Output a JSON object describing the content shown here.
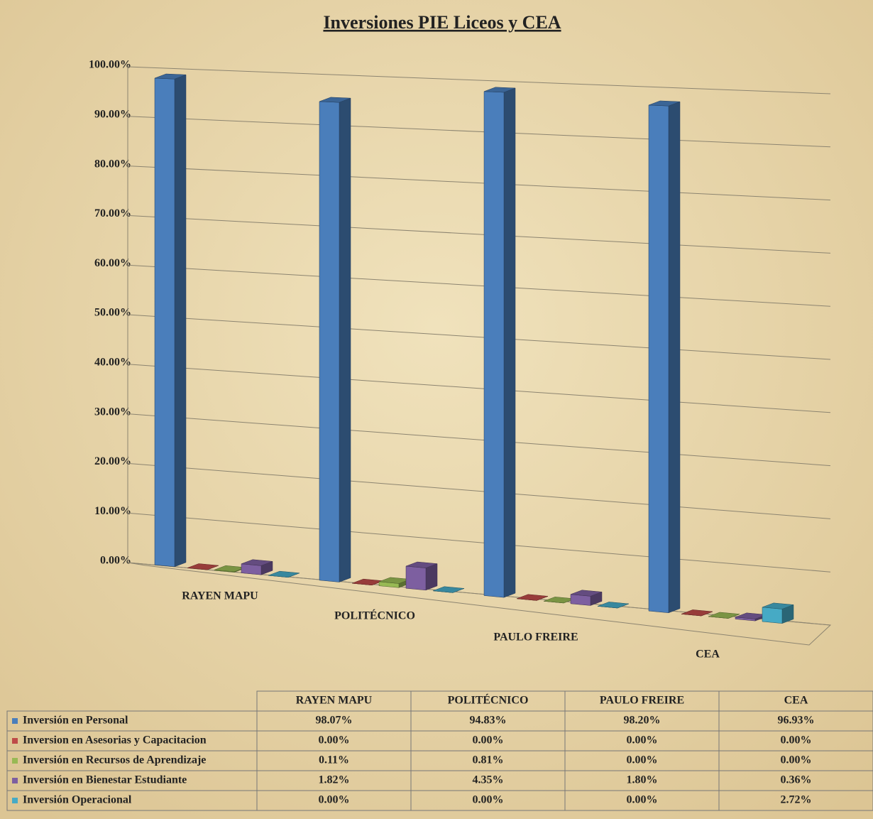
{
  "chart_data": {
    "type": "bar",
    "title": "Inversiones PIE Liceos y CEA",
    "categories": [
      "RAYEN MAPU",
      "POLITÉCNICO",
      "PAULO FREIRE",
      "CEA"
    ],
    "series": [
      {
        "name": "Inversión en Personal",
        "color": "#4a7ebb",
        "values": [
          98.07,
          94.83,
          98.2,
          96.93
        ],
        "value_labels": [
          "98.07%",
          "94.83%",
          "98.20%",
          "96.93%"
        ]
      },
      {
        "name": "Inversion en Asesorias y Capacitacion",
        "color": "#be4b48",
        "values": [
          0.0,
          0.0,
          0.0,
          0.0
        ],
        "value_labels": [
          "0.00%",
          "0.00%",
          "0.00%",
          "0.00%"
        ]
      },
      {
        "name": "Inversión en Recursos de Aprendizaje",
        "color": "#98b954",
        "values": [
          0.11,
          0.81,
          0.0,
          0.0
        ],
        "value_labels": [
          "0.11%",
          "0.81%",
          "0.00%",
          "0.00%"
        ]
      },
      {
        "name": "Inversión en Bienestar Estudiante",
        "color": "#7d5fa0",
        "values": [
          1.82,
          4.35,
          1.8,
          0.36
        ],
        "value_labels": [
          "1.82%",
          "4.35%",
          "1.80%",
          "0.36%"
        ]
      },
      {
        "name": "Inversión Operacional",
        "color": "#46aac5",
        "values": [
          0.0,
          0.0,
          0.0,
          2.72
        ],
        "value_labels": [
          "0.00%",
          "0.00%",
          "0.00%",
          "2.72%"
        ]
      }
    ],
    "ylim": [
      0,
      100
    ],
    "yticks": [
      {
        "value": 0,
        "label": "0.00%"
      },
      {
        "value": 10,
        "label": "10.00%"
      },
      {
        "value": 20,
        "label": "20.00%"
      },
      {
        "value": 30,
        "label": "30.00%"
      },
      {
        "value": 40,
        "label": "40.00%"
      },
      {
        "value": 50,
        "label": "50.00%"
      },
      {
        "value": 60,
        "label": "60.00%"
      },
      {
        "value": 70,
        "label": "70.00%"
      },
      {
        "value": 80,
        "label": "80.00%"
      },
      {
        "value": 90,
        "label": "90.00%"
      },
      {
        "value": 100,
        "label": "100.00%"
      }
    ],
    "grid": true
  }
}
